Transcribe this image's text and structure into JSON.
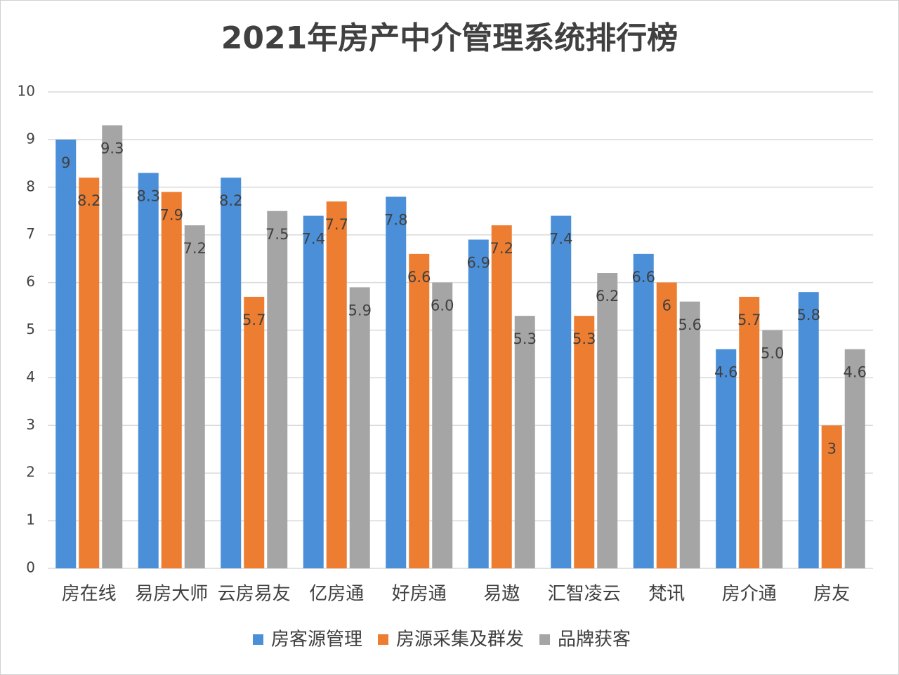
{
  "chart_data": {
    "type": "bar",
    "title": "2021年房产中介管理系统排行榜",
    "categories": [
      "房在线",
      "易房大师",
      "云房易友",
      "亿房通",
      "好房通",
      "易遨",
      "汇智凌云",
      "梵讯",
      "房介通",
      "房友"
    ],
    "series": [
      {
        "name": "房客源管理",
        "color": "#4a8fd8",
        "values": [
          9,
          8.3,
          8.2,
          7.4,
          7.8,
          6.9,
          7.4,
          6.6,
          4.6,
          5.8
        ]
      },
      {
        "name": "房源采集及群发",
        "color": "#ed7d31",
        "values": [
          8.2,
          7.9,
          5.7,
          7.7,
          6.6,
          7.2,
          5.3,
          6,
          5.7,
          3
        ]
      },
      {
        "name": "品牌获客",
        "color": "#a5a5a5",
        "values": [
          9.3,
          7.2,
          7.5,
          5.9,
          6,
          5.3,
          6.2,
          5.6,
          5,
          4.6
        ],
        "value_labels": [
          "9.3",
          "7.2",
          "7.5",
          "5.9",
          "6.0",
          "5.3",
          "6.2",
          "5.6",
          "5.0",
          "4.6"
        ]
      }
    ],
    "ylim": [
      0,
      10
    ],
    "yticks": [
      0,
      1,
      2,
      3,
      4,
      5,
      6,
      7,
      8,
      9,
      10
    ],
    "grid": true,
    "legend": "bottom"
  }
}
